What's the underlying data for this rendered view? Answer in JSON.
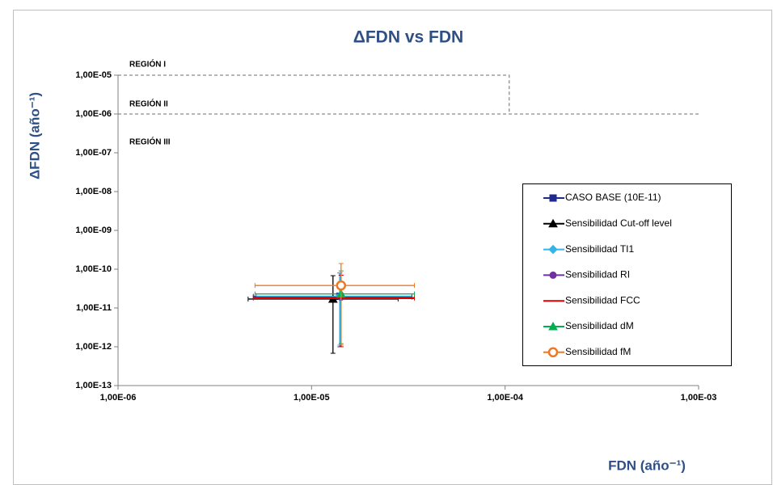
{
  "chart_data": {
    "type": "scatter",
    "title": "ΔFDN vs FDN",
    "xlabel": "FDN (año⁻¹)",
    "ylabel": "ΔFDN (año⁻¹)",
    "xscale": "log",
    "yscale": "log",
    "xlim": [
      1e-06,
      0.001
    ],
    "ylim": [
      1e-13,
      1e-05
    ],
    "xticks": [
      {
        "value": 1e-06,
        "label": "1,00E-06"
      },
      {
        "value": 1e-05,
        "label": "1,00E-05"
      },
      {
        "value": 0.0001,
        "label": "1,00E-04"
      },
      {
        "value": 0.001,
        "label": "1,00E-03"
      }
    ],
    "yticks": [
      {
        "value": 1e-13,
        "label": "1,00E-13"
      },
      {
        "value": 1e-12,
        "label": "1,00E-12"
      },
      {
        "value": 1e-11,
        "label": "1,00E-11"
      },
      {
        "value": 1e-10,
        "label": "1,00E-10"
      },
      {
        "value": 1e-09,
        "label": "1,00E-09"
      },
      {
        "value": 1e-08,
        "label": "1,00E-08"
      },
      {
        "value": 1e-07,
        "label": "1,00E-07"
      },
      {
        "value": 1e-06,
        "label": "1,00E-06"
      },
      {
        "value": 1e-05,
        "label": "1,00E-05"
      }
    ],
    "annotations": [
      "REGIÓN I",
      "REGIÓN II",
      "REGIÓN III"
    ],
    "boundaries": [
      {
        "x": [
          1e-06,
          0.000105,
          0.000105
        ],
        "y": [
          1e-05,
          1e-05,
          1e-06
        ]
      },
      {
        "x": [
          1e-06,
          0.001
        ],
        "y": [
          1e-06,
          1e-06
        ]
      }
    ],
    "legend": "right",
    "series": [
      {
        "name": "CASO BASE (10E-11)",
        "color": "#1f2a8c",
        "marker": "square",
        "x": [
          1.4e-05
        ],
        "values": [
          2e-11
        ],
        "xerr_low": [
          5e-06
        ],
        "xerr_high": [
          3.3e-05
        ],
        "yerr_low": [
          1e-12
        ],
        "yerr_high": [
          8e-11
        ]
      },
      {
        "name": "Sensibilidad  Cut-off level",
        "color": "#000000",
        "marker": "triangle",
        "x": [
          1.29e-05
        ],
        "values": [
          1.7e-11
        ],
        "xerr_low": [
          4.7e-06
        ],
        "xerr_high": [
          2.8e-05
        ],
        "yerr_low": [
          6.8e-13
        ],
        "yerr_high": [
          6.8e-11
        ]
      },
      {
        "name": "Sensibilidad TI1",
        "color": "#33b5e5",
        "marker": "diamond",
        "x": [
          1.4e-05
        ],
        "values": [
          2e-11
        ],
        "xerr_low": [
          5.2e-06
        ],
        "xerr_high": [
          3.3e-05
        ],
        "yerr_low": [
          1.1e-12
        ],
        "yerr_high": [
          8e-11
        ]
      },
      {
        "name": "Sensibilidad RI",
        "color": "#7030a0",
        "marker": "circle",
        "x": [
          1.42e-05
        ],
        "values": [
          1.9e-11
        ],
        "xerr_low": [
          5e-06
        ],
        "xerr_high": [
          3.3e-05
        ],
        "yerr_low": [
          1e-12
        ],
        "yerr_high": [
          7e-11
        ]
      },
      {
        "name": "Sensibilidad FCC",
        "color": "#e00000",
        "marker": "none",
        "x": [
          1.42e-05
        ],
        "values": [
          1.8e-11
        ],
        "xerr_low": [
          5e-06
        ],
        "xerr_high": [
          3.4e-05
        ],
        "yerr_low": [
          1e-12
        ],
        "yerr_high": [
          7e-11
        ]
      },
      {
        "name": "Sensibilidad dM",
        "color": "#00b050",
        "marker": "triangle",
        "x": [
          1.42e-05
        ],
        "values": [
          2.3e-11
        ],
        "xerr_low": [
          5.1e-06
        ],
        "xerr_high": [
          3.4e-05
        ],
        "yerr_low": [
          1.2e-12
        ],
        "yerr_high": [
          9e-11
        ]
      },
      {
        "name": "Sensibilidad fM",
        "color": "#f07820",
        "marker": "open-circle",
        "x": [
          1.42e-05
        ],
        "values": [
          3.8e-11
        ],
        "xerr_low": [
          5.1e-06
        ],
        "xerr_high": [
          3.4e-05
        ],
        "yerr_low": [
          1.1e-12
        ],
        "yerr_high": [
          1.4e-10
        ]
      }
    ]
  }
}
